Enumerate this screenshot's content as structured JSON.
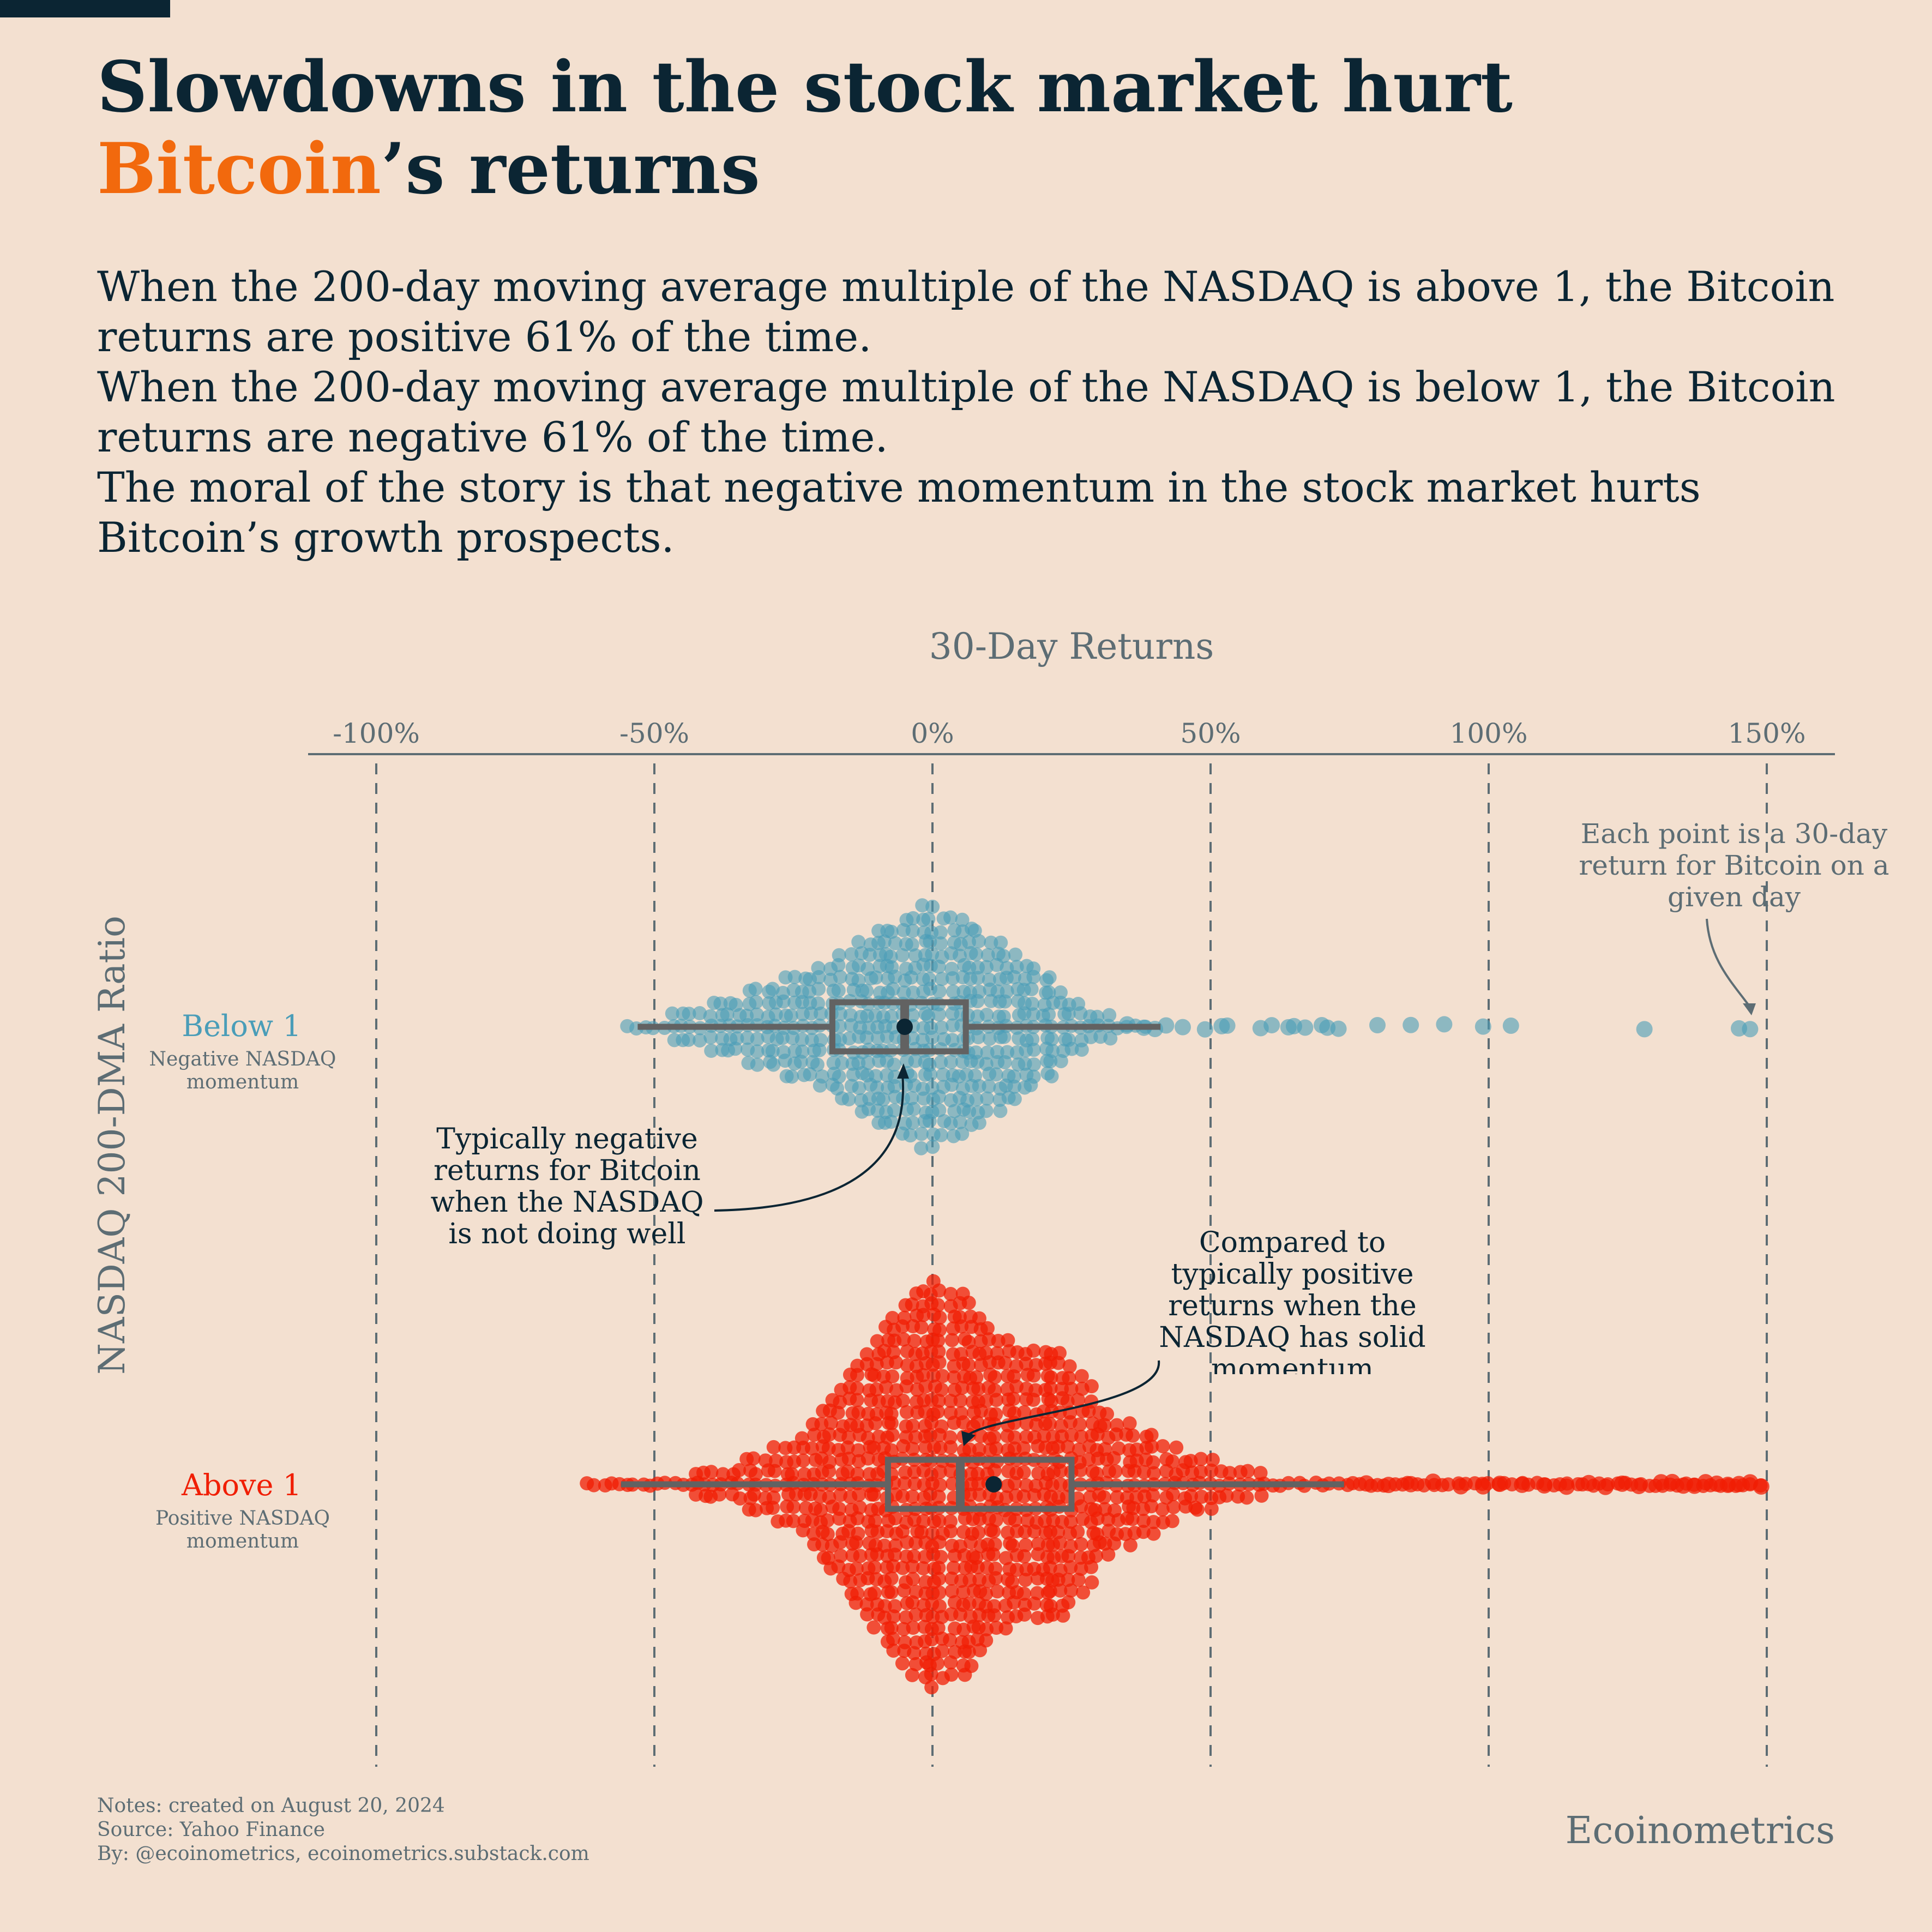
{
  "title": {
    "before": "Slowdowns in the stock market hurt ",
    "highlight": "Bitcoin",
    "after": "’s returns"
  },
  "subtitle_lines": [
    "When the 200-day moving average multiple of the NASDAQ is above 1, the Bitcoin returns are positive 61% of the time.",
    "When the 200-day moving average multiple of the NASDAQ is below 1, the Bitcoin returns are negative 61% of the time.",
    "The moral of the story is that negative momentum in the stock market hurts Bitcoin’s growth prospects."
  ],
  "footer": {
    "notes": "Notes: created on August 20, 2024",
    "source": "Source: Yahoo Finance",
    "by": "By: @ecoinometrics, ecoinometrics.substack.com",
    "brand": "Ecoinometrics"
  },
  "colors": {
    "below": "#4a9db8",
    "above": "#f01e04",
    "highlight": "#f2690d",
    "text_dark": "#0b2533",
    "text_grey": "#5d6d74",
    "box": "#626262"
  },
  "chart_data": {
    "type": "strip-box",
    "xlabel": "30-Day Returns",
    "ylabel": "NASDAQ 200-DMA Ratio",
    "xlim": [
      -112,
      162
    ],
    "x_ticks": [
      -100,
      -50,
      0,
      50,
      100,
      150
    ],
    "x_tick_labels": [
      "-100%",
      "-50%",
      "0%",
      "50%",
      "100%",
      "150%"
    ],
    "grid": "vertical dashed at ticks",
    "groups": [
      {
        "name": "Below 1",
        "sublabel": "Negative NASDAQ momentum",
        "color": "#4a9db8",
        "box": {
          "whisker_low": -53,
          "q1": -18,
          "median": -5,
          "q3": 6,
          "whisker_high": 41,
          "mean": -5
        },
        "distribution": [
          [
            -55,
            1
          ],
          [
            -50,
            5
          ],
          [
            -45,
            9
          ],
          [
            -40,
            14
          ],
          [
            -35,
            20
          ],
          [
            -30,
            25
          ],
          [
            -25,
            30
          ],
          [
            -20,
            36
          ],
          [
            -15,
            45
          ],
          [
            -10,
            55
          ],
          [
            -5,
            65
          ],
          [
            0,
            72
          ],
          [
            5,
            62
          ],
          [
            10,
            52
          ],
          [
            15,
            45
          ],
          [
            20,
            32
          ],
          [
            25,
            20
          ],
          [
            30,
            10
          ],
          [
            35,
            5
          ],
          [
            40,
            2
          ]
        ],
        "outliers": [
          35,
          38,
          40,
          42,
          45,
          49,
          52,
          53,
          59,
          61,
          64,
          65,
          67,
          70,
          71,
          73,
          80,
          86,
          92,
          99,
          104,
          128,
          145,
          147
        ]
      },
      {
        "name": "Above 1",
        "sublabel": "Positive NASDAQ momentum",
        "color": "#f01e04",
        "box": {
          "whisker_low": -56,
          "q1": -8,
          "median": 5,
          "q3": 25,
          "whisker_high": 74,
          "mean": 11
        },
        "distribution": [
          [
            -62,
            1
          ],
          [
            -55,
            3
          ],
          [
            -45,
            6
          ],
          [
            -35,
            12
          ],
          [
            -30,
            18
          ],
          [
            -25,
            26
          ],
          [
            -20,
            48
          ],
          [
            -15,
            65
          ],
          [
            -10,
            85
          ],
          [
            -5,
            105
          ],
          [
            0,
            120
          ],
          [
            5,
            110
          ],
          [
            10,
            90
          ],
          [
            15,
            80
          ],
          [
            20,
            80
          ],
          [
            25,
            75
          ],
          [
            30,
            48
          ],
          [
            35,
            35
          ],
          [
            40,
            28
          ],
          [
            45,
            20
          ],
          [
            50,
            14
          ],
          [
            55,
            10
          ],
          [
            60,
            6
          ],
          [
            70,
            5
          ],
          [
            80,
            3
          ],
          [
            90,
            3
          ],
          [
            100,
            2
          ],
          [
            110,
            2
          ],
          [
            120,
            2
          ],
          [
            130,
            1
          ],
          [
            140,
            2
          ],
          [
            150,
            1
          ]
        ],
        "outliers": [
          78,
          82,
          86,
          90,
          95,
          99,
          102,
          106,
          110,
          114,
          118,
          121,
          124,
          127,
          131,
          133,
          135,
          137,
          139,
          141,
          143,
          145,
          147,
          149
        ]
      }
    ],
    "annotations": [
      "Each point is a 30-day return for Bitcoin on a given day",
      "Typically negative returns for Bitcoin when the NASDAQ is not doing well",
      "Compared to typically positive returns when the NASDAQ has solid momentum"
    ]
  }
}
